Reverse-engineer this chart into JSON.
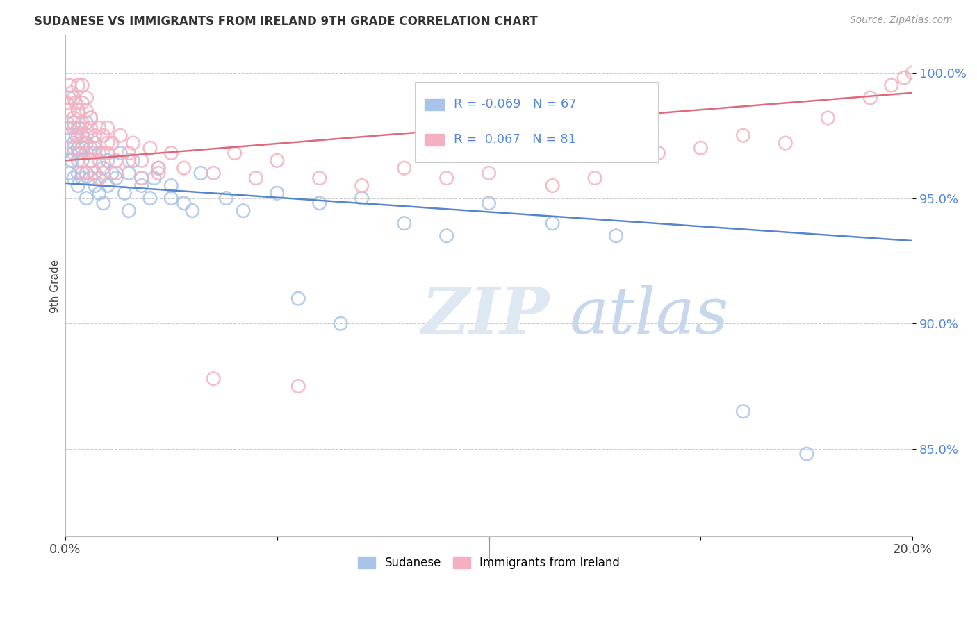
{
  "title": "SUDANESE VS IMMIGRANTS FROM IRELAND 9TH GRADE CORRELATION CHART",
  "source": "Source: ZipAtlas.com",
  "ylabel": "9th Grade",
  "legend_blue_label": "Sudanese",
  "legend_pink_label": "Immigrants from Ireland",
  "xlim": [
    0.0,
    0.2
  ],
  "ylim": [
    0.815,
    1.015
  ],
  "yticks": [
    0.85,
    0.9,
    0.95,
    1.0
  ],
  "ytick_labels": [
    "85.0%",
    "90.0%",
    "95.0%",
    "100.0%"
  ],
  "blue_scatter_color": "#a8c4e8",
  "pink_scatter_color": "#f4b0c0",
  "blue_line_color": "#5585cc",
  "pink_line_color": "#e06878",
  "blue_line_y0": 0.956,
  "blue_line_y1": 0.933,
  "pink_line_y0": 0.965,
  "pink_line_y1": 0.992,
  "blue_scatter_x": [
    0.0005,
    0.001,
    0.001,
    0.001,
    0.0015,
    0.002,
    0.002,
    0.002,
    0.002,
    0.0025,
    0.003,
    0.003,
    0.003,
    0.003,
    0.003,
    0.0035,
    0.004,
    0.004,
    0.004,
    0.004,
    0.005,
    0.005,
    0.005,
    0.005,
    0.006,
    0.006,
    0.006,
    0.007,
    0.007,
    0.007,
    0.008,
    0.008,
    0.009,
    0.009,
    0.01,
    0.01,
    0.011,
    0.012,
    0.013,
    0.014,
    0.015,
    0.016,
    0.018,
    0.02,
    0.022,
    0.025,
    0.028,
    0.032,
    0.038,
    0.042,
    0.05,
    0.06,
    0.07,
    0.08,
    0.09,
    0.1,
    0.115,
    0.13,
    0.015,
    0.018,
    0.021,
    0.025,
    0.03,
    0.055,
    0.065,
    0.16,
    0.175
  ],
  "blue_scatter_y": [
    0.97,
    0.978,
    0.96,
    0.99,
    0.965,
    0.98,
    0.972,
    0.958,
    0.968,
    0.975,
    0.985,
    0.97,
    0.96,
    0.978,
    0.955,
    0.968,
    0.975,
    0.965,
    0.958,
    0.97,
    0.972,
    0.96,
    0.98,
    0.95,
    0.97,
    0.958,
    0.965,
    0.972,
    0.96,
    0.955,
    0.968,
    0.952,
    0.962,
    0.948,
    0.965,
    0.955,
    0.96,
    0.958,
    0.968,
    0.952,
    0.96,
    0.965,
    0.958,
    0.95,
    0.962,
    0.955,
    0.948,
    0.96,
    0.95,
    0.945,
    0.952,
    0.948,
    0.95,
    0.94,
    0.935,
    0.948,
    0.94,
    0.935,
    0.945,
    0.955,
    0.958,
    0.95,
    0.945,
    0.91,
    0.9,
    0.865,
    0.848
  ],
  "pink_scatter_x": [
    0.0003,
    0.0005,
    0.001,
    0.001,
    0.001,
    0.0015,
    0.002,
    0.002,
    0.002,
    0.002,
    0.0025,
    0.003,
    0.003,
    0.003,
    0.003,
    0.0035,
    0.004,
    0.004,
    0.004,
    0.004,
    0.004,
    0.005,
    0.005,
    0.005,
    0.005,
    0.006,
    0.006,
    0.006,
    0.007,
    0.007,
    0.007,
    0.008,
    0.008,
    0.009,
    0.009,
    0.01,
    0.01,
    0.011,
    0.012,
    0.013,
    0.015,
    0.016,
    0.018,
    0.02,
    0.022,
    0.025,
    0.028,
    0.035,
    0.04,
    0.045,
    0.05,
    0.06,
    0.07,
    0.08,
    0.09,
    0.1,
    0.115,
    0.125,
    0.14,
    0.15,
    0.16,
    0.17,
    0.18,
    0.19,
    0.195,
    0.198,
    0.2,
    0.003,
    0.004,
    0.005,
    0.006,
    0.007,
    0.008,
    0.009,
    0.01,
    0.012,
    0.015,
    0.018,
    0.022,
    0.035,
    0.055
  ],
  "pink_scatter_y": [
    0.988,
    0.98,
    0.995,
    0.975,
    0.985,
    0.992,
    0.978,
    0.99,
    0.97,
    0.982,
    0.988,
    0.975,
    0.995,
    0.965,
    0.985,
    0.978,
    0.988,
    0.972,
    0.995,
    0.98,
    0.96,
    0.985,
    0.975,
    0.968,
    0.99,
    0.978,
    0.965,
    0.982,
    0.975,
    0.968,
    0.96,
    0.978,
    0.965,
    0.975,
    0.96,
    0.978,
    0.968,
    0.972,
    0.965,
    0.975,
    0.968,
    0.972,
    0.965,
    0.97,
    0.96,
    0.968,
    0.962,
    0.96,
    0.968,
    0.958,
    0.965,
    0.958,
    0.955,
    0.962,
    0.958,
    0.96,
    0.955,
    0.958,
    0.968,
    0.97,
    0.975,
    0.972,
    0.982,
    0.99,
    0.995,
    0.998,
    1.0,
    0.968,
    0.975,
    0.96,
    0.982,
    0.97,
    0.958,
    0.968,
    0.972,
    0.96,
    0.965,
    0.958,
    0.962,
    0.878,
    0.875
  ]
}
